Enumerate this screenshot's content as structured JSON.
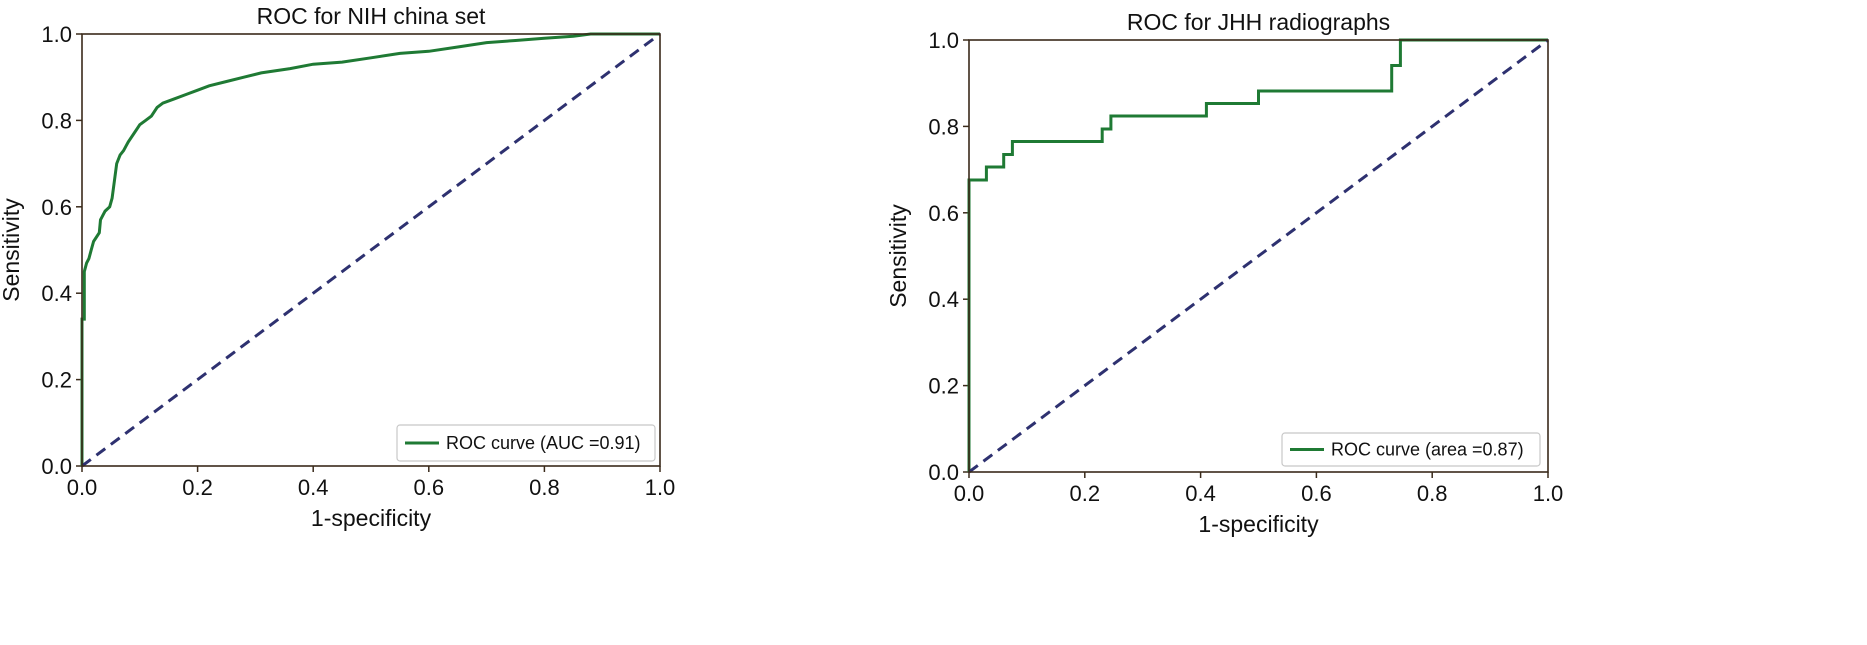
{
  "colors": {
    "roc": "#1f7a34",
    "diagonal": "#2e3170",
    "axes": "#3a2a1a",
    "legend_border": "#c8c8c8"
  },
  "chart_data": [
    {
      "type": "line",
      "title": "ROC for NIH china set",
      "xlabel": "1-specificity",
      "ylabel": "Sensitivity",
      "xlim": [
        0,
        1
      ],
      "ylim": [
        0,
        1
      ],
      "xticks": [
        "0.0",
        "0.2",
        "0.4",
        "0.6",
        "0.8",
        "1.0"
      ],
      "yticks": [
        "0.0",
        "0.2",
        "0.4",
        "0.6",
        "0.8",
        "1.0"
      ],
      "grid": false,
      "legend": {
        "position": "bottom-right",
        "entries": [
          "ROC curve (AUC =0.91)"
        ]
      },
      "series": [
        {
          "name": "ROC curve (AUC =0.91)",
          "style": "solid",
          "points": [
            [
              0,
              0
            ],
            [
              0,
              0.34
            ],
            [
              0.004,
              0.34
            ],
            [
              0.004,
              0.45
            ],
            [
              0.008,
              0.47
            ],
            [
              0.012,
              0.48
            ],
            [
              0.016,
              0.5
            ],
            [
              0.02,
              0.52
            ],
            [
              0.025,
              0.53
            ],
            [
              0.03,
              0.54
            ],
            [
              0.032,
              0.57
            ],
            [
              0.036,
              0.58
            ],
            [
              0.04,
              0.59
            ],
            [
              0.048,
              0.6
            ],
            [
              0.052,
              0.62
            ],
            [
              0.056,
              0.66
            ],
            [
              0.06,
              0.7
            ],
            [
              0.066,
              0.72
            ],
            [
              0.072,
              0.73
            ],
            [
              0.08,
              0.75
            ],
            [
              0.09,
              0.77
            ],
            [
              0.1,
              0.79
            ],
            [
              0.11,
              0.8
            ],
            [
              0.12,
              0.81
            ],
            [
              0.13,
              0.83
            ],
            [
              0.14,
              0.84
            ],
            [
              0.16,
              0.85
            ],
            [
              0.18,
              0.86
            ],
            [
              0.2,
              0.87
            ],
            [
              0.22,
              0.88
            ],
            [
              0.25,
              0.89
            ],
            [
              0.28,
              0.9
            ],
            [
              0.31,
              0.91
            ],
            [
              0.36,
              0.92
            ],
            [
              0.4,
              0.93
            ],
            [
              0.45,
              0.935
            ],
            [
              0.5,
              0.945
            ],
            [
              0.55,
              0.955
            ],
            [
              0.6,
              0.96
            ],
            [
              0.65,
              0.97
            ],
            [
              0.7,
              0.98
            ],
            [
              0.75,
              0.985
            ],
            [
              0.8,
              0.99
            ],
            [
              0.85,
              0.995
            ],
            [
              0.88,
              1.0
            ],
            [
              1.0,
              1.0
            ]
          ]
        },
        {
          "name": "",
          "style": "dashed",
          "points": [
            [
              0,
              0
            ],
            [
              1,
              1
            ]
          ]
        }
      ]
    },
    {
      "type": "line",
      "title": "ROC for JHH radiographs",
      "xlabel": "1-specificity",
      "ylabel": "Sensitivity",
      "xlim": [
        0,
        1
      ],
      "ylim": [
        0,
        1
      ],
      "xticks": [
        "0.0",
        "0.2",
        "0.4",
        "0.6",
        "0.8",
        "1.0"
      ],
      "yticks": [
        "0.0",
        "0.2",
        "0.4",
        "0.6",
        "0.8",
        "1.0"
      ],
      "grid": false,
      "legend": {
        "position": "bottom-right",
        "entries": [
          "ROC curve (area =0.87)"
        ]
      },
      "series": [
        {
          "name": "ROC curve (area =0.87)",
          "style": "solid",
          "points": [
            [
              0,
              0
            ],
            [
              0,
              0.676
            ],
            [
              0.03,
              0.676
            ],
            [
              0.03,
              0.706
            ],
            [
              0.06,
              0.706
            ],
            [
              0.06,
              0.735
            ],
            [
              0.075,
              0.735
            ],
            [
              0.075,
              0.765
            ],
            [
              0.23,
              0.765
            ],
            [
              0.23,
              0.794
            ],
            [
              0.245,
              0.794
            ],
            [
              0.245,
              0.824
            ],
            [
              0.41,
              0.824
            ],
            [
              0.41,
              0.853
            ],
            [
              0.5,
              0.853
            ],
            [
              0.5,
              0.882
            ],
            [
              0.73,
              0.882
            ],
            [
              0.73,
              0.941
            ],
            [
              0.745,
              0.941
            ],
            [
              0.745,
              1.0
            ],
            [
              1.0,
              1.0
            ]
          ]
        },
        {
          "name": "",
          "style": "dashed",
          "points": [
            [
              0,
              0
            ],
            [
              1,
              1
            ]
          ]
        }
      ]
    }
  ]
}
